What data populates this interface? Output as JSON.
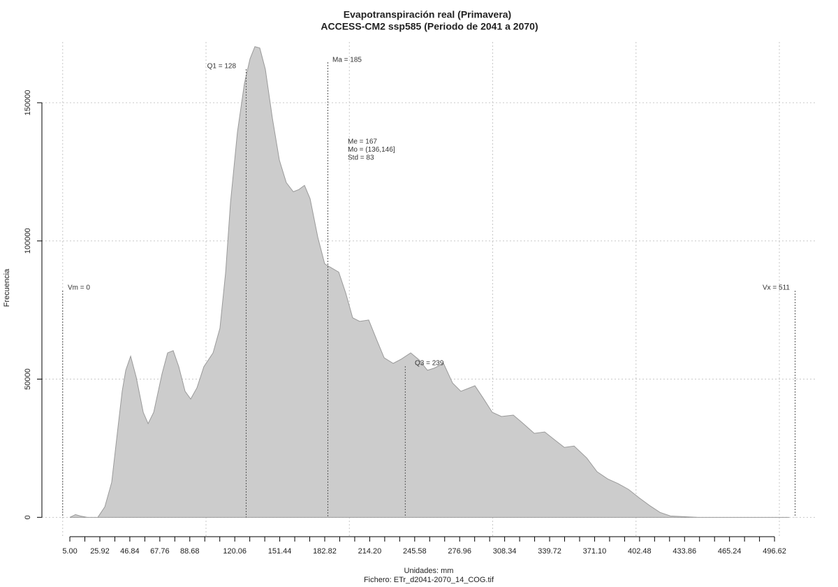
{
  "chart_data": {
    "type": "area",
    "title": "Evapotranspiración real (Primavera)",
    "subtitle": "ACCESS-CM2 ssp585 (Periodo de 2041 a 2070)",
    "x_label": "Unidades: mm",
    "caption": "Fichero: ETr_d2041-2070_14_COG.tif",
    "y_label": "Frecuencia",
    "color": "#cccccc",
    "line_color": "#9a9a9a",
    "grid": true,
    "x": [
      5.0,
      8.9,
      12.3,
      17.2,
      24.5,
      29.4,
      34.2,
      38.1,
      41.5,
      44.0,
      47.4,
      51.3,
      56.2,
      59.6,
      63.5,
      69.3,
      73.2,
      77.1,
      81.0,
      85.4,
      89.3,
      93.7,
      98.5,
      104.9,
      109.7,
      113.7,
      117.1,
      121.9,
      126.8,
      130.7,
      134.1,
      137.5,
      141.4,
      146.3,
      151.2,
      156.0,
      160.9,
      164.8,
      168.7,
      172.6,
      178.0,
      182.8,
      187.7,
      192.6,
      197.5,
      202.3,
      207.2,
      213.5,
      219.4,
      224.3,
      230.6,
      236.4,
      242.8,
      248.6,
      254.5,
      259.3,
      265.7,
      272.0,
      277.8,
      282.7,
      287.6,
      293.4,
      299.7,
      306.1,
      314.4,
      320.7,
      329.0,
      336.3,
      343.6,
      350.0,
      356.8,
      365.6,
      372.8,
      380.2,
      387.5,
      394.8,
      402.1,
      409.4,
      416.7,
      424.0,
      443.5,
      506.8
    ],
    "values": [
      0,
      1000,
      500,
      0,
      0,
      3800,
      12700,
      30400,
      45600,
      53200,
      58300,
      50700,
      38000,
      33900,
      38000,
      51900,
      59500,
      60300,
      54500,
      45600,
      42800,
      46900,
      54500,
      59500,
      68400,
      88700,
      114000,
      139300,
      157000,
      165900,
      170300,
      169800,
      162100,
      144400,
      129200,
      121100,
      117800,
      118600,
      120100,
      115300,
      101300,
      91700,
      90200,
      88700,
      81100,
      72200,
      70900,
      71400,
      63800,
      57700,
      55700,
      57300,
      59500,
      57000,
      53200,
      54000,
      55700,
      48600,
      45600,
      46600,
      47600,
      43100,
      38000,
      36500,
      37000,
      34200,
      30400,
      30900,
      27900,
      25300,
      25800,
      21500,
      16500,
      13900,
      12200,
      10100,
      7100,
      4300,
      1800,
      500,
      0,
      0
    ],
    "xlim": [
      -14.5,
      526.3
    ],
    "ylim": [
      -7000,
      172000
    ],
    "xticks": [
      {
        "value": 5,
        "label": "5.00"
      },
      {
        "value": 25.92,
        "label": "25.92"
      },
      {
        "value": 46.84,
        "label": "46.84"
      },
      {
        "value": 67.76,
        "label": "67.76"
      },
      {
        "value": 88.68,
        "label": "88.68"
      },
      {
        "value": 120.06,
        "label": "120.06"
      },
      {
        "value": 151.44,
        "label": "151.44"
      },
      {
        "value": 182.82,
        "label": "182.82"
      },
      {
        "value": 214.2,
        "label": "214.20"
      },
      {
        "value": 245.58,
        "label": "245.58"
      },
      {
        "value": 276.96,
        "label": "276.96"
      },
      {
        "value": 308.34,
        "label": "308.34"
      },
      {
        "value": 339.72,
        "label": "339.72"
      },
      {
        "value": 371.1,
        "label": "371.10"
      },
      {
        "value": 402.48,
        "label": "402.48"
      },
      {
        "value": 433.86,
        "label": "433.86"
      },
      {
        "value": 465.24,
        "label": "465.24"
      },
      {
        "value": 496.62,
        "label": "496.62"
      }
    ],
    "xminorticks": [
      15.46,
      36.38,
      57.3,
      78.22,
      99.14,
      109.6,
      130.52,
      140.98,
      161.9,
      172.36,
      193.28,
      203.74,
      224.66,
      235.12,
      256.04,
      266.5,
      287.42,
      297.88,
      318.8,
      329.26,
      350.18,
      360.64,
      381.56,
      392.02,
      412.94,
      423.4,
      444.32,
      454.78,
      475.7,
      486.16
    ],
    "xgrid": [
      0,
      100,
      200,
      300,
      400,
      500
    ],
    "yticks": [
      0,
      50000,
      100000,
      150000
    ],
    "markers": [
      {
        "label": "Vm = 0",
        "x": 0
      },
      {
        "label": "Q1 = 128",
        "x": 128
      },
      {
        "label": "Ma = 185",
        "x": 185
      },
      {
        "label": "Q3 = 239",
        "x": 239
      },
      {
        "label": "Vx = 511",
        "x": 511
      }
    ],
    "stats": [
      "Me = 167",
      "Mo = (136,146]",
      "Std = 83"
    ]
  }
}
